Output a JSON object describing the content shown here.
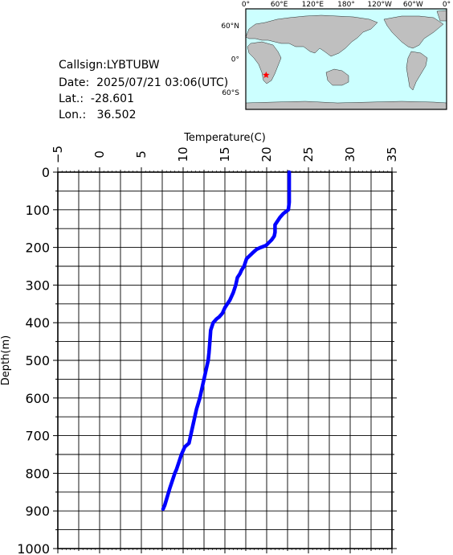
{
  "info": {
    "callsign": "Callsign:LYBTUBW",
    "date": "Date:  2025/07/21 03:06(UTC)",
    "lat": "Lat.:  -28.601",
    "lon": "Lon.:   36.502"
  },
  "map": {
    "lon_labels": [
      "0°",
      "60°E",
      "120°E",
      "180°",
      "120°W",
      "60°W",
      "0°"
    ],
    "lat_labels": [
      "60°N",
      "0°",
      "60°S"
    ],
    "marker": {
      "lat": -28.601,
      "lon": 36.502,
      "color": "#ff0000"
    },
    "ocean_color": "#ccffff",
    "land_color": "#bfbfbf"
  },
  "chart_data": {
    "type": "line",
    "xlabel": "Temperature(C)",
    "ylabel": "Depth(m)",
    "xlim": [
      -5,
      35
    ],
    "ylim": [
      0,
      1000
    ],
    "y_inverted": true,
    "x_axis_position": "top",
    "x_ticks": [
      "-5",
      "0",
      "5",
      "10",
      "15",
      "20",
      "25",
      "30",
      "35"
    ],
    "y_ticks": [
      "0",
      "100",
      "200",
      "300",
      "400",
      "500",
      "600",
      "700",
      "800",
      "900",
      "1000"
    ],
    "grid": true,
    "series": [
      {
        "color": "#0000ff",
        "x": [
          22.7,
          22.7,
          22.7,
          22.7,
          22.6,
          22.0,
          21.6,
          21.0,
          21.0,
          20.9,
          20.6,
          19.9,
          19.3,
          18.8,
          18.3,
          17.6,
          17.3,
          17.0,
          16.8,
          16.5,
          16.3,
          16.0,
          15.6,
          15.3,
          15.0,
          14.7,
          14.3,
          14.0,
          13.6,
          13.3,
          13.2,
          13.1,
          13.0,
          12.8,
          12.5,
          12.3,
          12.0,
          11.6,
          11.3,
          11.0,
          10.7,
          10.2,
          9.8,
          9.5,
          9.2,
          9.0,
          8.7,
          8.4,
          8.2,
          8.0,
          7.8,
          7.6
        ],
        "y": [
          0,
          20,
          50,
          80,
          100,
          110,
          120,
          140,
          160,
          170,
          180,
          195,
          200,
          205,
          215,
          230,
          250,
          260,
          270,
          280,
          300,
          320,
          340,
          350,
          360,
          375,
          385,
          390,
          400,
          420,
          450,
          480,
          500,
          520,
          550,
          570,
          600,
          630,
          660,
          690,
          720,
          730,
          750,
          770,
          790,
          800,
          820,
          840,
          855,
          870,
          885,
          895
        ]
      }
    ]
  }
}
